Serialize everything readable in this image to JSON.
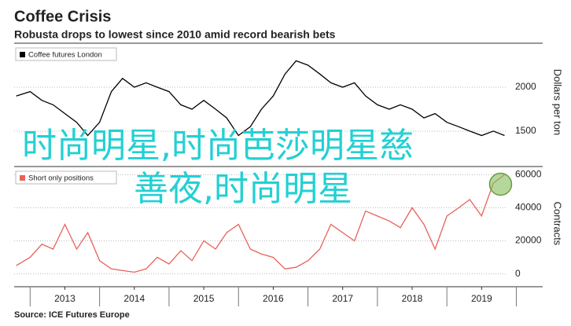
{
  "title": "Coffee Crisis",
  "subtitle": "Robusta drops to lowest since 2010 amid record bearish bets",
  "source": "Source: ICE Futures Europe",
  "watermark": [
    "时尚明星,时尚芭莎明星慈",
    "善夜,时尚明星"
  ],
  "chart_data": [
    {
      "type": "line",
      "y_label": "Dollars per ton",
      "x": [
        2012.8,
        2013.0,
        2013.17,
        2013.33,
        2013.5,
        2013.67,
        2013.83,
        2014.0,
        2014.17,
        2014.33,
        2014.5,
        2014.67,
        2014.83,
        2015.0,
        2015.17,
        2015.33,
        2015.5,
        2015.67,
        2015.83,
        2016.0,
        2016.17,
        2016.33,
        2016.5,
        2016.67,
        2016.83,
        2017.0,
        2017.17,
        2017.33,
        2017.5,
        2017.67,
        2017.83,
        2018.0,
        2018.17,
        2018.33,
        2018.5,
        2018.67,
        2018.83,
        2019.0,
        2019.17,
        2019.33,
        2019.5,
        2019.67,
        2019.83
      ],
      "series": [
        {
          "name": "Coffee futures London",
          "color": "#000000",
          "values": [
            1900,
            1950,
            1850,
            1800,
            1700,
            1600,
            1450,
            1600,
            1950,
            2100,
            2000,
            2050,
            2000,
            1950,
            1800,
            1750,
            1850,
            1750,
            1650,
            1450,
            1550,
            1750,
            1900,
            2150,
            2300,
            2250,
            2150,
            2050,
            2000,
            2050,
            1900,
            1800,
            1750,
            1800,
            1750,
            1650,
            1700,
            1600,
            1550,
            1500,
            1450,
            1500,
            1450
          ]
        }
      ],
      "xlim": [
        2012.77,
        2019.87
      ],
      "ylim": [
        1160,
        2500
      ],
      "yticks": [
        1500,
        2000
      ],
      "grid": true
    },
    {
      "type": "line",
      "y_label": "Contracts",
      "x": [
        2012.8,
        2013.0,
        2013.17,
        2013.33,
        2013.5,
        2013.67,
        2013.83,
        2014.0,
        2014.17,
        2014.33,
        2014.5,
        2014.67,
        2014.83,
        2015.0,
        2015.17,
        2015.33,
        2015.5,
        2015.67,
        2015.83,
        2016.0,
        2016.17,
        2016.33,
        2016.5,
        2016.67,
        2016.83,
        2017.0,
        2017.17,
        2017.33,
        2017.5,
        2017.67,
        2017.83,
        2018.0,
        2018.17,
        2018.33,
        2018.5,
        2018.67,
        2018.83,
        2019.0,
        2019.17,
        2019.33,
        2019.5,
        2019.67,
        2019.83
      ],
      "series": [
        {
          "name": "Short only positions",
          "color": "#e8615b",
          "values": [
            5000,
            10000,
            18000,
            15000,
            30000,
            15000,
            25000,
            8000,
            3000,
            2000,
            1000,
            3000,
            10000,
            6000,
            14000,
            8000,
            20000,
            15000,
            25000,
            30000,
            15000,
            12000,
            10000,
            3000,
            4000,
            8000,
            15000,
            30000,
            25000,
            20000,
            38000,
            35000,
            32000,
            28000,
            40000,
            30000,
            15000,
            35000,
            40000,
            45000,
            35000,
            55000,
            60000
          ]
        }
      ],
      "xlim": [
        2012.77,
        2019.87
      ],
      "ylim": [
        -4000,
        65000
      ],
      "yticks": [
        0,
        20000,
        40000,
        60000
      ],
      "grid": true,
      "xticks": [
        {
          "value": 2013.5,
          "label": "2013"
        },
        {
          "value": 2014.5,
          "label": "2014"
        },
        {
          "value": 2015.5,
          "label": "2015"
        },
        {
          "value": 2016.5,
          "label": "2016"
        },
        {
          "value": 2017.5,
          "label": "2017"
        },
        {
          "value": 2018.5,
          "label": "2018"
        },
        {
          "value": 2019.5,
          "label": "2019"
        }
      ]
    }
  ]
}
